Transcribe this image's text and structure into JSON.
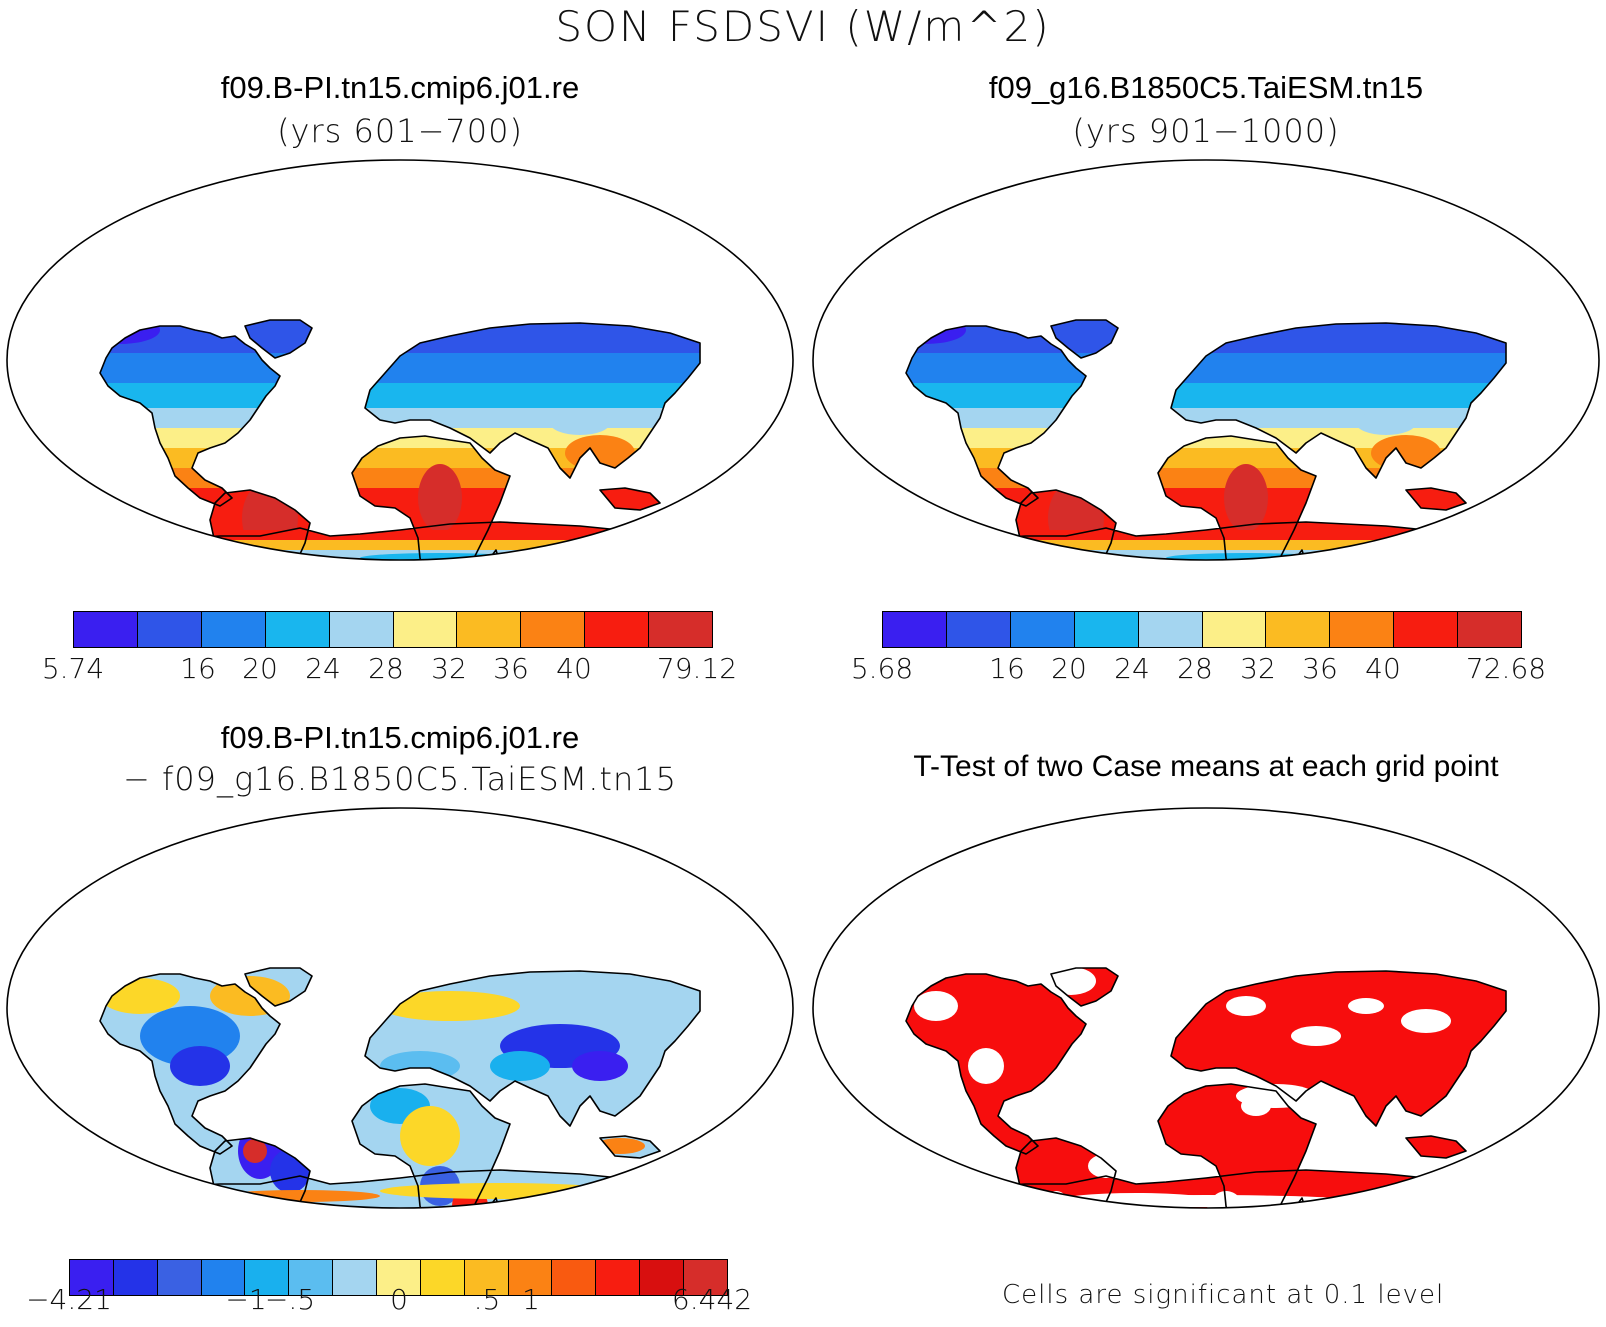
{
  "title": "SON FSDSVI (W/m^2)",
  "colors": {
    "seq": [
      "#3a1ff0",
      "#2f55e8",
      "#2182ee",
      "#19b6ee",
      "#a4d5f0",
      "#fcef88",
      "#fbbb22",
      "#fb8214",
      "#f71d10",
      "#d62d2a"
    ],
    "div": [
      "#3a1ff0",
      "#2433e8",
      "#3a61e3",
      "#2182ee",
      "#19b0ee",
      "#5bbdf0",
      "#a4d5f0",
      "#fcef88",
      "#fcd728",
      "#fbbb22",
      "#fb8214",
      "#f95a10",
      "#f71d10",
      "#d80f0f",
      "#d62d2a"
    ],
    "signif": "#f70d0d"
  },
  "panels": {
    "case1": {
      "title": "f09.B-PI.tn15.cmip6.j01.re",
      "years": "(yrs 601−700)",
      "ticks": [
        "5.74",
        "16",
        "20",
        "24",
        "28",
        "32",
        "36",
        "40",
        "79.12"
      ]
    },
    "case2": {
      "title": "f09_g16.B1850C5.TaiESM.tn15",
      "years": "(yrs 901−1000)",
      "ticks": [
        "5.68",
        "16",
        "20",
        "24",
        "28",
        "32",
        "36",
        "40",
        "72.68"
      ]
    },
    "diff": {
      "title": "f09.B-PI.tn15.cmip6.j01.re",
      "subtitle": "− f09_g16.B1850C5.TaiESM.tn15",
      "ticks": [
        "−4.21",
        "−1",
        "−.5",
        "0",
        ".5",
        "1",
        "6.442"
      ]
    },
    "ttest": {
      "title": "T-Test of two Case means at each grid point",
      "note": "Cells are significant at 0.1 level"
    }
  }
}
